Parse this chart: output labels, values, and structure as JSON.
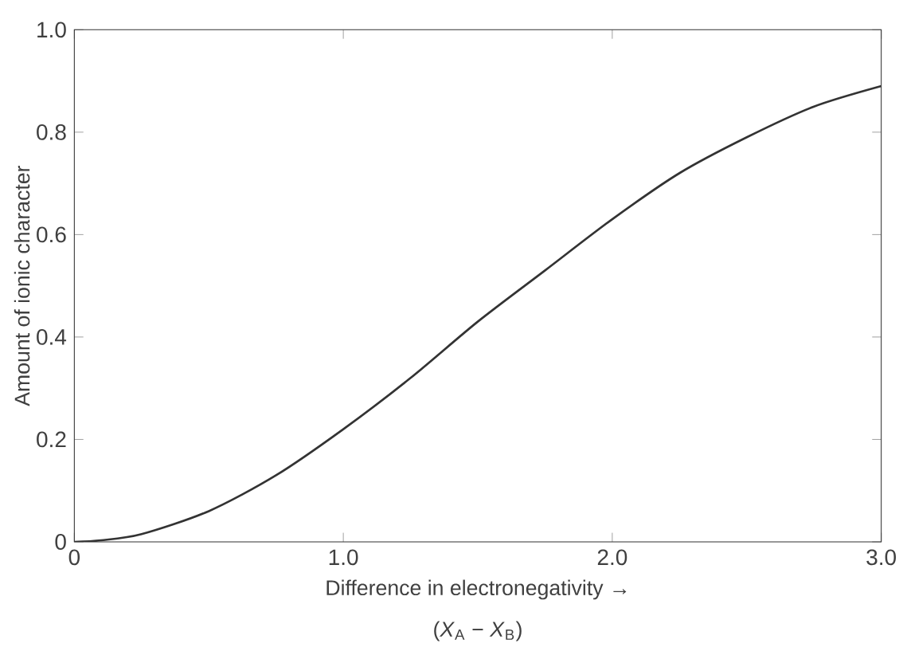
{
  "chart_data": {
    "type": "line",
    "xlabel": "Difference in electronegativity →",
    "ylabel": "Amount of ionic character",
    "annotations": [
      "(*X*$_{A}$ − *X*$_{B}$)"
    ],
    "x": [
      0,
      0.1,
      0.25,
      0.5,
      0.75,
      1.0,
      1.25,
      1.5,
      1.75,
      2.0,
      2.25,
      2.5,
      2.75,
      3.0
    ],
    "series": [
      {
        "color": "#333333",
        "values": [
          0,
          0.003,
          0.015,
          0.06,
          0.13,
          0.22,
          0.32,
          0.43,
          0.53,
          0.63,
          0.72,
          0.79,
          0.85,
          0.89
        ]
      }
    ],
    "xlim": [
      0,
      3.0
    ],
    "ylim": [
      0,
      1.0
    ],
    "xticks": [
      0,
      {
        "value": 1,
        "label": "1.0"
      },
      {
        "value": 2,
        "label": "2.0"
      },
      {
        "value": 3,
        "label": "3.0"
      }
    ],
    "yticks": [
      0,
      0.2,
      0.4,
      0.6,
      0.8,
      {
        "value": 1,
        "label": "1.0"
      }
    ],
    "grid": false,
    "marker": "none",
    "line_style": "solid"
  }
}
